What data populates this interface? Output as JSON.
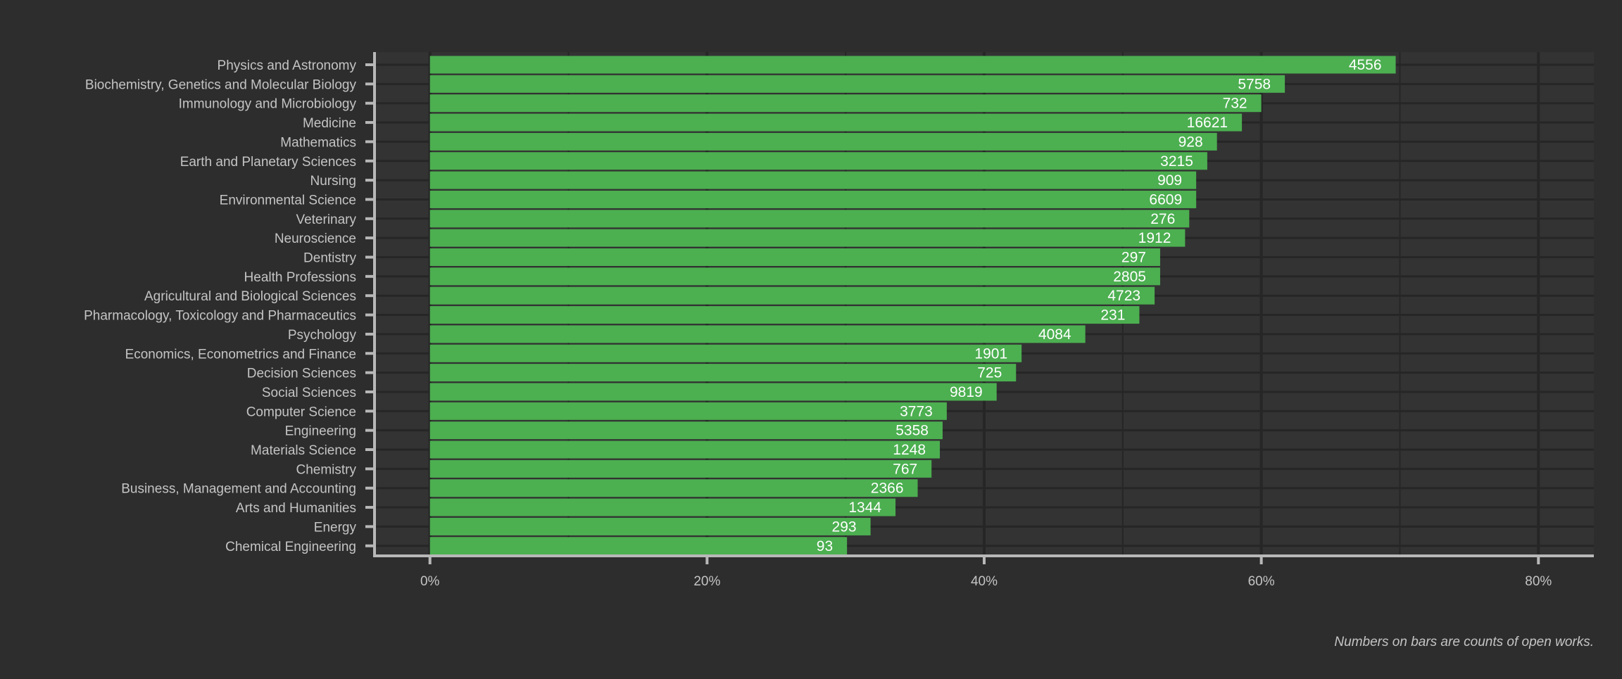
{
  "chart_data": {
    "type": "bar",
    "orientation": "horizontal",
    "categories": [
      "Physics and Astronomy",
      "Biochemistry, Genetics and Molecular Biology",
      "Immunology and Microbiology",
      "Medicine",
      "Mathematics",
      "Earth and Planetary Sciences",
      "Nursing",
      "Environmental Science",
      "Veterinary",
      "Neuroscience",
      "Dentistry",
      "Health Professions",
      "Agricultural and Biological Sciences",
      "Pharmacology, Toxicology and Pharmaceutics",
      "Psychology",
      "Economics, Econometrics and Finance",
      "Decision Sciences",
      "Social Sciences",
      "Computer Science",
      "Engineering",
      "Materials Science",
      "Chemistry",
      "Business, Management and Accounting",
      "Arts and Humanities",
      "Energy",
      "Chemical Engineering"
    ],
    "values": [
      69.7,
      61.7,
      60.0,
      58.6,
      56.8,
      56.1,
      55.3,
      55.3,
      54.8,
      54.5,
      52.7,
      52.7,
      52.3,
      51.2,
      47.3,
      42.7,
      42.3,
      40.9,
      37.3,
      37.0,
      36.8,
      36.2,
      35.2,
      33.6,
      31.8,
      30.1
    ],
    "bar_labels": [
      "4556",
      "5758",
      "732",
      "16621",
      "928",
      "3215",
      "909",
      "6609",
      "276",
      "1912",
      "297",
      "2805",
      "4723",
      "231",
      "4084",
      "1901",
      "725",
      "9819",
      "3773",
      "5358",
      "1248",
      "767",
      "2366",
      "1344",
      "293",
      "93"
    ],
    "x_ticks": [
      0,
      20,
      40,
      60,
      80
    ],
    "x_tick_labels": [
      "0%",
      "20%",
      "40%",
      "60%",
      "80%"
    ],
    "xlim": [
      -4,
      84
    ],
    "xlabel": "",
    "ylabel": "",
    "title": "",
    "caption": "Numbers on bars are counts of open works.",
    "grid": true,
    "legend": "none",
    "colors": {
      "background": "#2d2d2d",
      "panel": "#333333",
      "grid": "#262626",
      "bar": "#4caf50",
      "axis": "#b8b8b8",
      "text": "#c4c4c4",
      "bar_text": "#ffffff"
    }
  }
}
